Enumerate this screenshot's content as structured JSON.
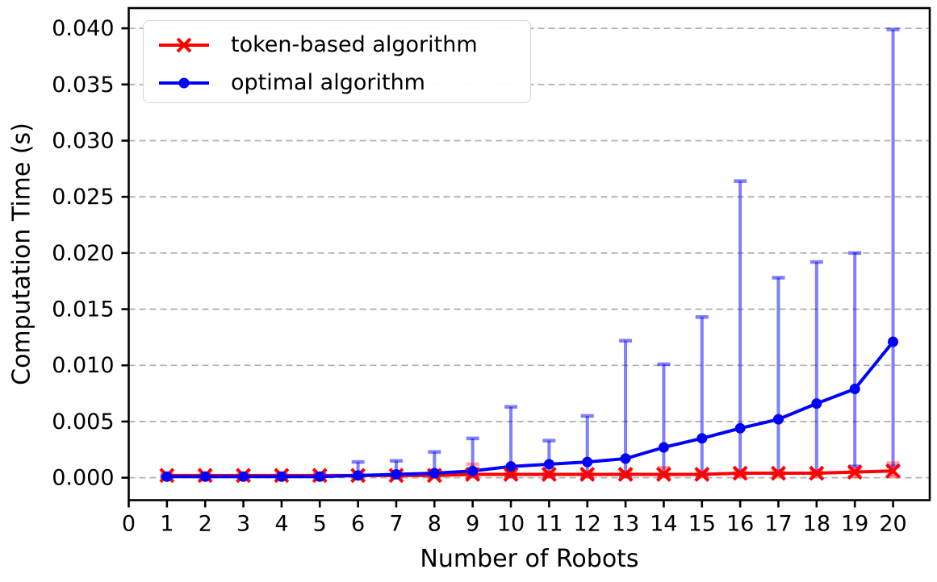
{
  "chart_data": {
    "type": "line",
    "title": "",
    "xlabel": "Number of Robots",
    "ylabel": "Computation Time (s)",
    "xlim": [
      0,
      20.96
    ],
    "ylim": [
      -0.002,
      0.0418
    ],
    "xticks": [
      0,
      1,
      2,
      3,
      4,
      5,
      6,
      7,
      8,
      9,
      10,
      11,
      12,
      13,
      14,
      15,
      16,
      17,
      18,
      19,
      20
    ],
    "ytick_values": [
      0.0,
      0.005,
      0.01,
      0.015,
      0.02,
      0.025,
      0.03,
      0.035,
      0.04
    ],
    "ytick_labels": [
      "0.000",
      "0.005",
      "0.010",
      "0.015",
      "0.020",
      "0.025",
      "0.030",
      "0.035",
      "0.040"
    ],
    "grid": "horizontal dashed",
    "grid_color": "#b0b0b0",
    "legend_position": "upper left",
    "x": [
      1,
      2,
      3,
      4,
      5,
      6,
      7,
      8,
      9,
      10,
      11,
      12,
      13,
      14,
      15,
      16,
      17,
      18,
      19,
      20
    ],
    "series": [
      {
        "name": "token-based algorithm",
        "color": "#ff0000",
        "errorbar_color": "rgba(255,0,0,0.35)",
        "marker": "x",
        "values": [
          0.0002,
          0.0002,
          0.0002,
          0.0002,
          0.0002,
          0.0002,
          0.0002,
          0.0002,
          0.0003,
          0.0003,
          0.0003,
          0.0003,
          0.0003,
          0.0003,
          0.0003,
          0.0004,
          0.0004,
          0.0004,
          0.0005,
          0.0006
        ],
        "err_min": [
          0.0001,
          0.0001,
          0.0001,
          0.0001,
          0.0001,
          0.0001,
          0.0001,
          0.0001,
          0.0001,
          0.0001,
          0.0001,
          0.0001,
          0.0001,
          0.0001,
          0.0001,
          0.0001,
          0.0001,
          0.0001,
          0.0001,
          0.0001
        ],
        "err_max": [
          0.0003,
          0.0003,
          0.0003,
          0.0003,
          0.0003,
          0.0004,
          0.0004,
          0.0005,
          0.0012,
          0.0005,
          0.0005,
          0.0005,
          0.0005,
          0.0009,
          0.0005,
          0.0006,
          0.0006,
          0.0006,
          0.0008,
          0.0013
        ]
      },
      {
        "name": "optimal algorithm",
        "color": "#0000ff",
        "errorbar_color": "rgba(0,0,255,0.5)",
        "marker": "circle",
        "values": [
          0.0001,
          0.0001,
          0.0001,
          0.0001,
          0.0001,
          0.0002,
          0.0003,
          0.0004,
          0.0006,
          0.001,
          0.0012,
          0.0014,
          0.0017,
          0.0027,
          0.0035,
          0.0044,
          0.0052,
          0.0066,
          0.0079,
          0.0121
        ],
        "err_min": [
          0.0,
          0.0,
          0.0,
          0.0,
          0.0,
          0.0,
          0.0001,
          0.0001,
          0.0001,
          0.0001,
          0.0001,
          0.0001,
          0.0001,
          0.0002,
          0.0002,
          0.0003,
          0.0003,
          0.0004,
          0.001,
          0.001
        ],
        "err_max": [
          0.0002,
          0.0002,
          0.0002,
          0.0002,
          0.0003,
          0.0014,
          0.0015,
          0.0023,
          0.0035,
          0.0063,
          0.0033,
          0.0055,
          0.0122,
          0.0101,
          0.0143,
          0.0264,
          0.0178,
          0.0192,
          0.02,
          0.0399
        ]
      }
    ]
  }
}
